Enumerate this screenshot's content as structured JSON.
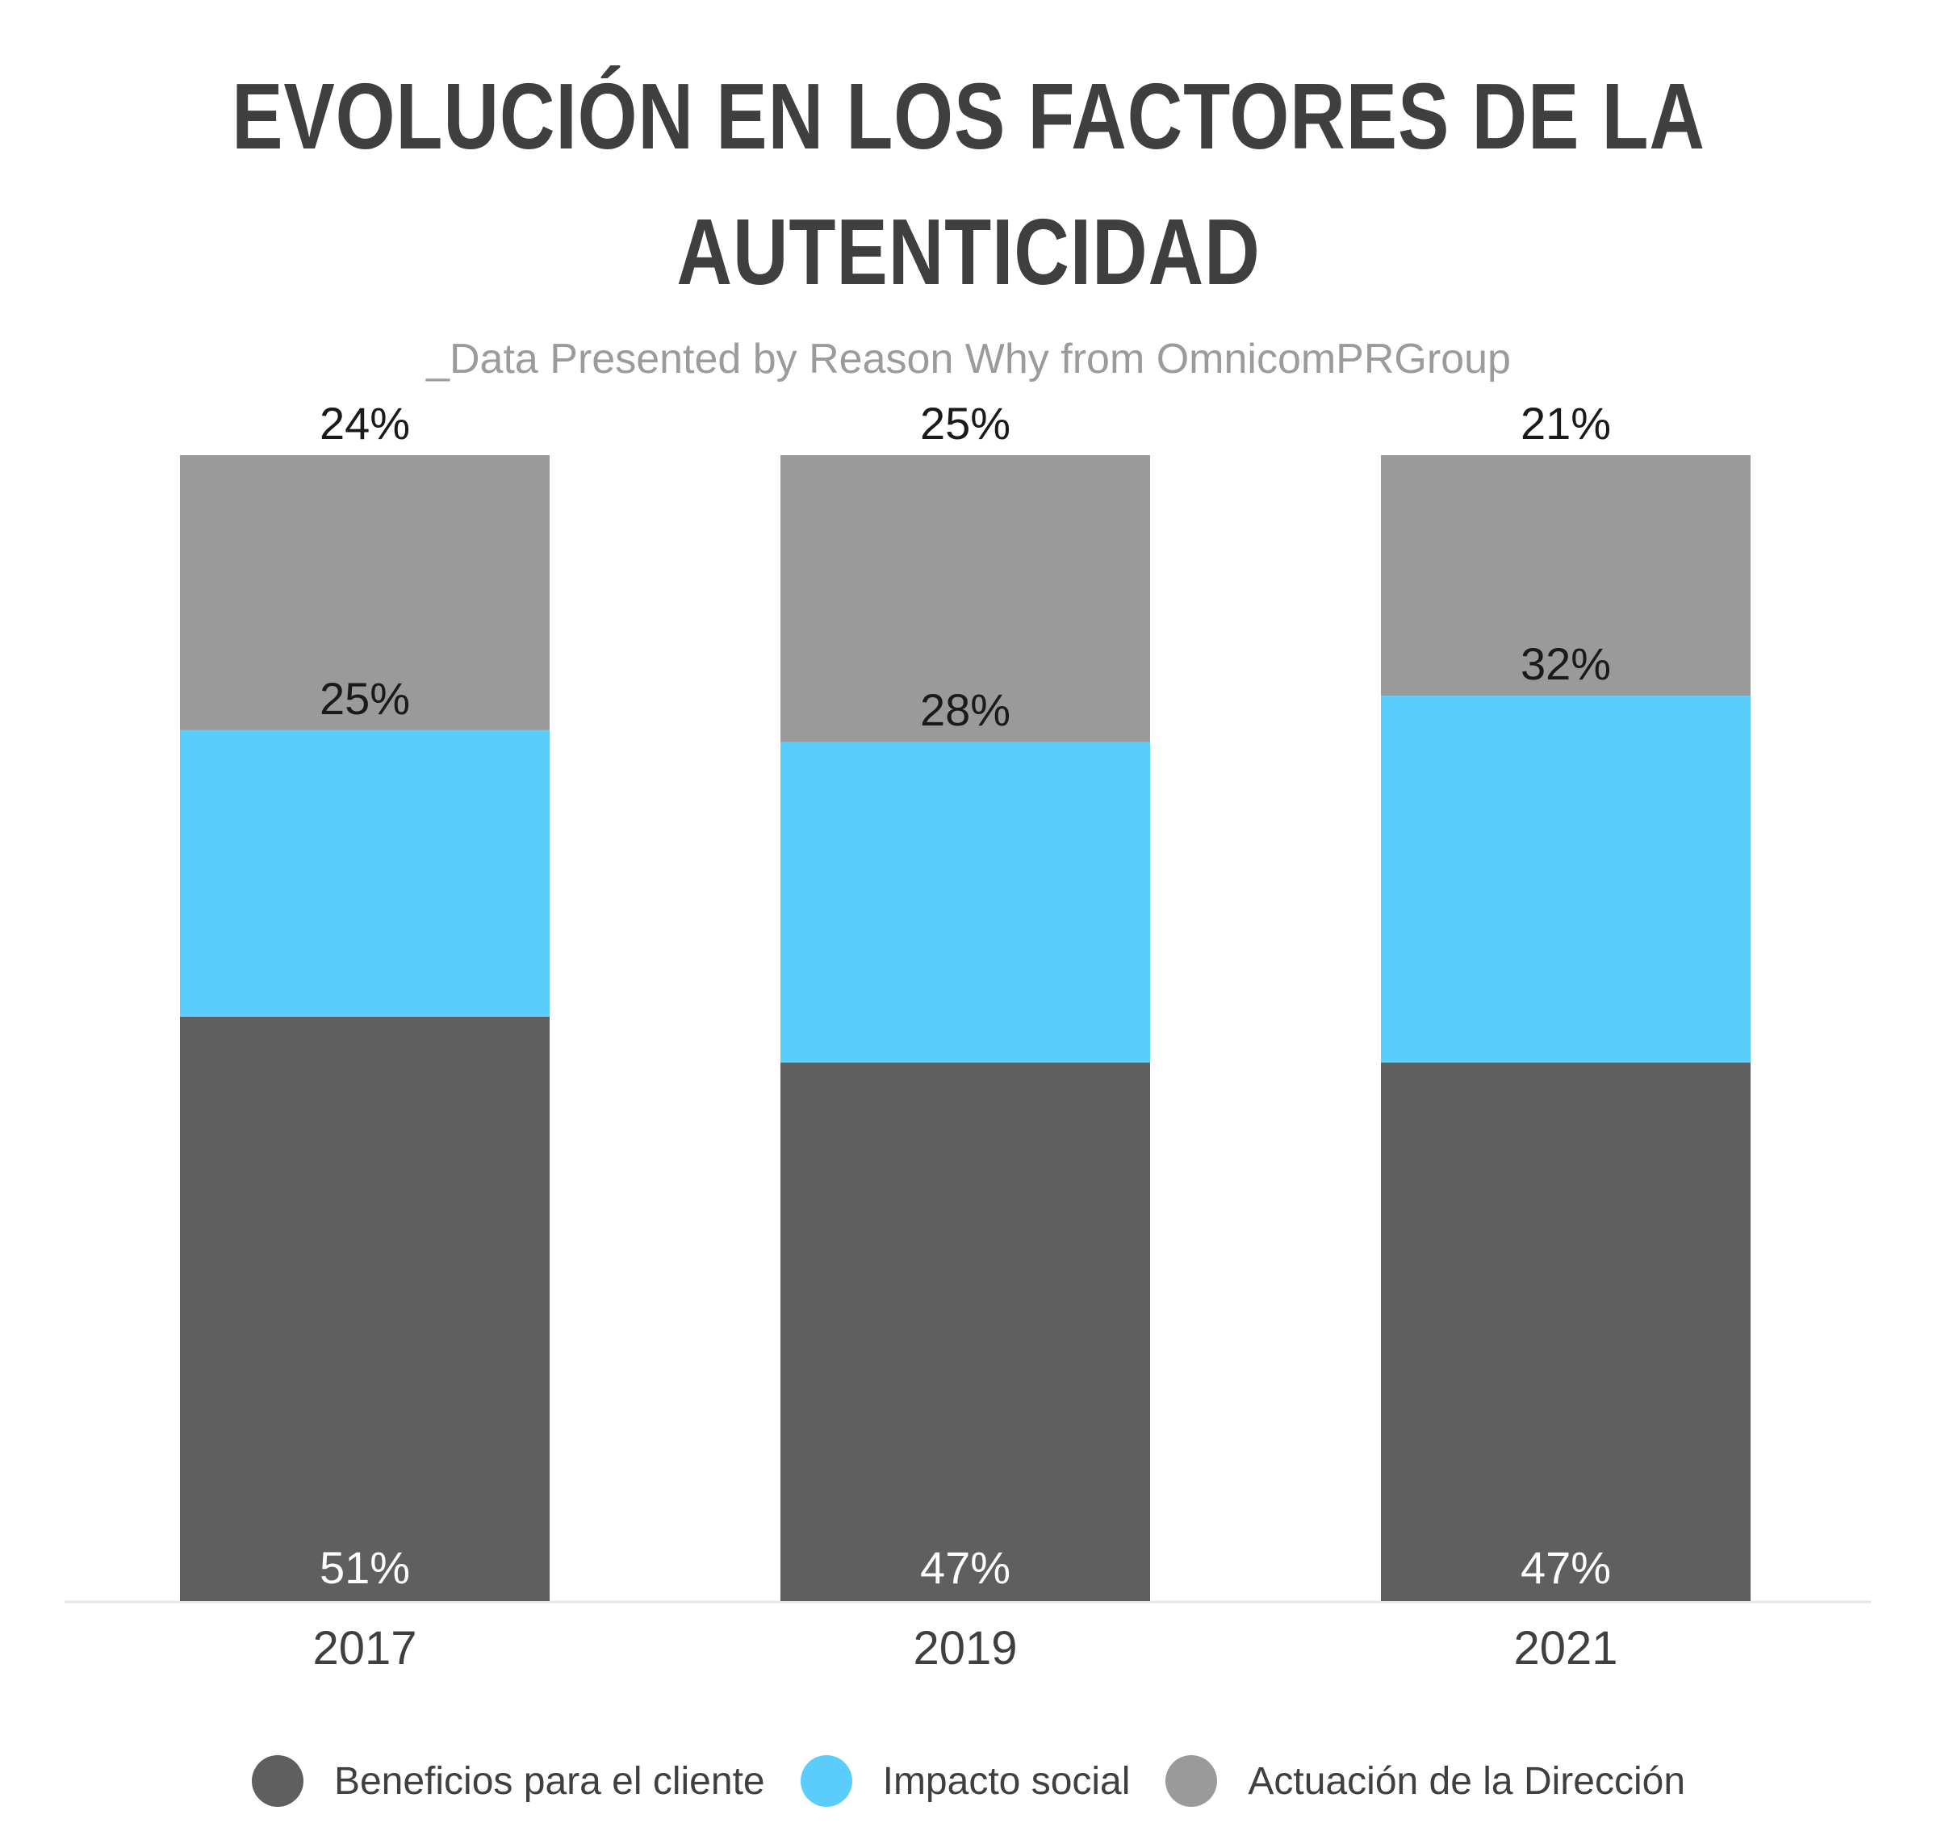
{
  "chart_data": {
    "type": "bar",
    "stacked": true,
    "title": "EVOLUCIÓN EN LOS FACTORES DE LA AUTENTICIDAD",
    "title_lines": [
      "EVOLUCIÓN EN LOS FACTORES DE LA",
      "AUTENTICIDAD"
    ],
    "subtitle": "_Data Presented by Reason Why from OmnicomPRGroup",
    "categories": [
      "2017",
      "2019",
      "2021"
    ],
    "series": [
      {
        "name": "Beneficios para el cliente",
        "values": [
          51,
          47,
          47
        ],
        "labels": [
          "51%",
          "47%",
          "47%"
        ],
        "color": "#5f5f5f",
        "label_color": "#ffffff"
      },
      {
        "name": "Impacto social",
        "values": [
          25,
          28,
          32
        ],
        "labels": [
          "25%",
          "28%",
          "32%"
        ],
        "color": "#5bcdfd",
        "label_color": "#1a1a1a"
      },
      {
        "name": "Actuación de la Dirección",
        "values": [
          24,
          25,
          21
        ],
        "labels": [
          "24%",
          "25%",
          "21%"
        ],
        "color": "#9a9a9a",
        "label_color": "#1a1a1a"
      }
    ],
    "ylim": [
      0,
      100
    ],
    "xlabel": "",
    "ylabel": "",
    "grid": false,
    "legend_position": "bottom",
    "axis_line_color": "#e5e5e5",
    "tick_label_color": "#3f3f3f"
  }
}
